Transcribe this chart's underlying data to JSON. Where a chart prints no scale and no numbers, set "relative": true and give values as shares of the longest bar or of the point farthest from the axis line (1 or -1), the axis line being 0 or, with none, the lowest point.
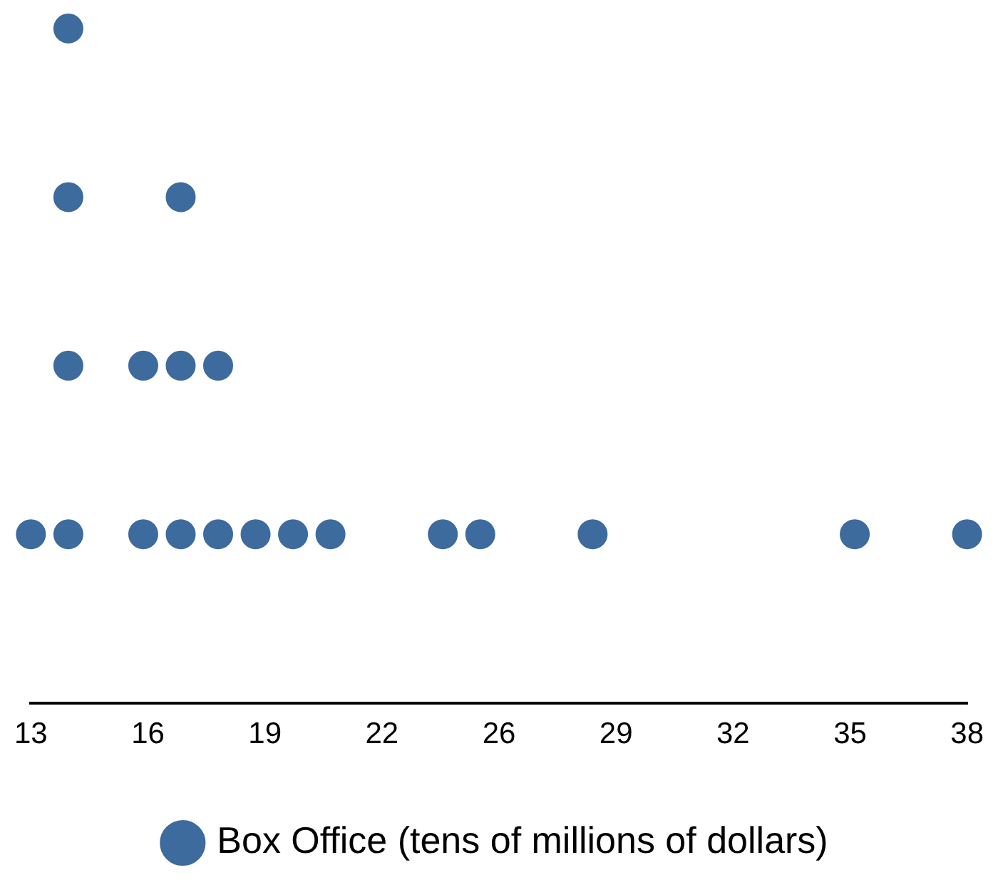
{
  "chart_data": {
    "type": "scatter",
    "relative": true,
    "xlim": [
      13,
      38
    ],
    "xticks": [
      13,
      {
        "value": 16.125,
        "label": "16"
      },
      {
        "value": 19.25,
        "label": "19"
      },
      {
        "value": 22.375,
        "label": "22"
      },
      {
        "value": 25.5,
        "label": "26"
      },
      {
        "value": 28.625,
        "label": "29"
      },
      {
        "value": 31.75,
        "label": "32"
      },
      {
        "value": 34.875,
        "label": "35"
      },
      38
    ],
    "series": [
      {
        "name": "Box Office (tens of millions of dollars)",
        "color": "#3d6b9e",
        "x": [
          13,
          14,
          14,
          14,
          14,
          16,
          16,
          17,
          17,
          17,
          18,
          18,
          19,
          20,
          21,
          24,
          25,
          28,
          35,
          38
        ],
        "values": [
          0.25,
          0.25,
          0.5,
          0.75,
          1,
          0.25,
          0.5,
          0.25,
          0.5,
          0.75,
          0.25,
          0.5,
          0.25,
          0.25,
          0.25,
          0.25,
          0.25,
          0.25,
          0.25,
          0.25
        ]
      }
    ],
    "marker": "circle",
    "grid": false,
    "legend": "bottom",
    "tick_labels": "x"
  }
}
